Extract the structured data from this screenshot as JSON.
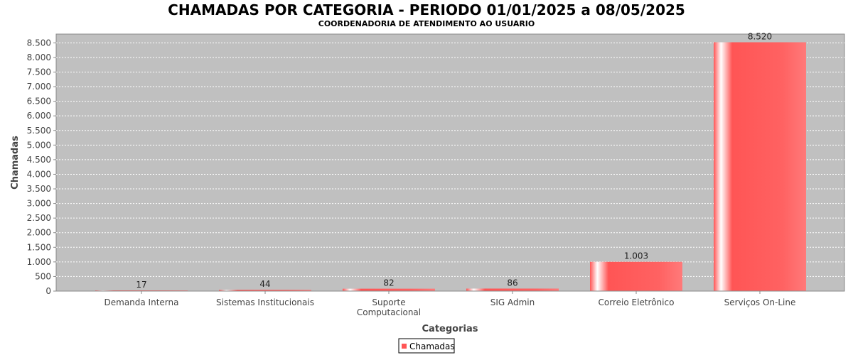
{
  "chart_data": {
    "type": "bar",
    "title": "CHAMADAS POR CATEGORIA - PERIODO 01/01/2025 a 08/05/2025",
    "subtitle": "COORDENADORIA DE ATENDIMENTO AO USUARIO",
    "xlabel": "Categorias",
    "ylabel": "Chamadas",
    "categories": [
      [
        "Demanda Interna"
      ],
      [
        "Sistemas Institucionais"
      ],
      [
        "Suporte",
        "Computacional"
      ],
      [
        "SIG Admin"
      ],
      [
        "Correio Eletrônico"
      ],
      [
        "Serviços On-Line"
      ]
    ],
    "series": [
      {
        "name": "Chamadas",
        "values": [
          17,
          44,
          82,
          86,
          1003,
          8520
        ],
        "color": "#ff5555"
      }
    ],
    "data_labels": [
      "17",
      "44",
      "82",
      "86",
      "1.003",
      "8.520"
    ],
    "ylim": [
      0,
      8800
    ],
    "yticks": [
      0,
      500,
      1000,
      1500,
      2000,
      2500,
      3000,
      3500,
      4000,
      4500,
      5000,
      5500,
      6000,
      6500,
      7000,
      7500,
      8000,
      8500
    ],
    "ytick_labels": [
      "0",
      "500",
      "1.000",
      "1.500",
      "2.000",
      "2.500",
      "3.000",
      "3.500",
      "4.000",
      "4.500",
      "5.000",
      "5.500",
      "6.000",
      "6.500",
      "7.000",
      "7.500",
      "8.000",
      "8.500"
    ],
    "grid": true,
    "plot_background": "#c0c0c0",
    "legend_position": "bottom-center"
  }
}
